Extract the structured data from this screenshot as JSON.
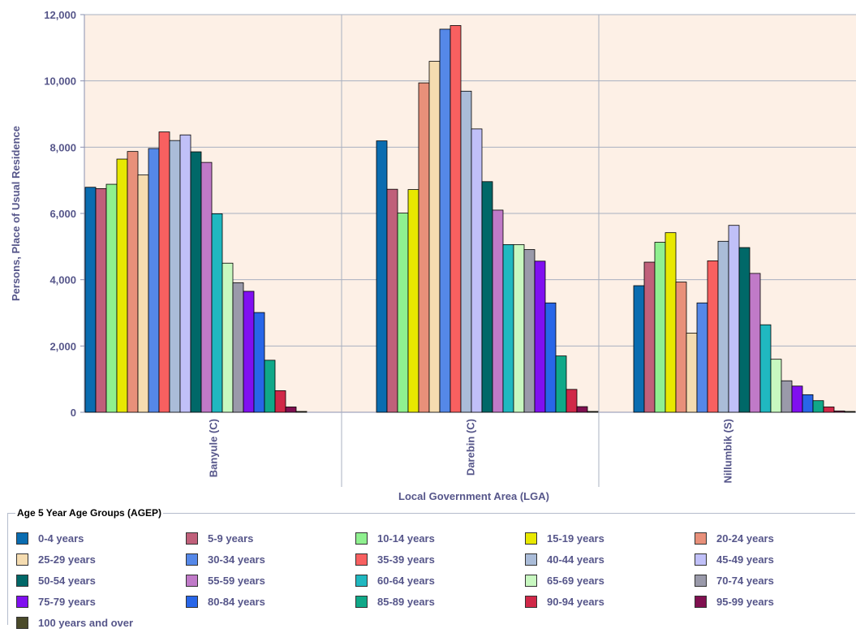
{
  "chart_data": {
    "type": "bar",
    "xlabel": "Local Government Area (LGA)",
    "ylabel": "Persons, Place of Usual Residence",
    "ylim": [
      0,
      12000
    ],
    "yticks": [
      "0",
      "2,000",
      "4,000",
      "6,000",
      "8,000",
      "10,000",
      "12,000"
    ],
    "grid": true,
    "legend_title": "Age 5 Year Age Groups (AGEP)",
    "legend_position": "bottom",
    "categories": [
      "Banyule (C)",
      "Darebin (C)",
      "Nillumbik (S)"
    ],
    "series": [
      {
        "name": "0-4 years",
        "color": "#0a6cb0",
        "values": [
          6790,
          8190,
          3820
        ]
      },
      {
        "name": "5-9 years",
        "color": "#c0607a",
        "values": [
          6750,
          6730,
          4530
        ]
      },
      {
        "name": "10-14 years",
        "color": "#8ff08f",
        "values": [
          6880,
          6010,
          5130
        ]
      },
      {
        "name": "15-19 years",
        "color": "#e8e800",
        "values": [
          7640,
          6720,
          5420
        ]
      },
      {
        "name": "20-24 years",
        "color": "#e8907a",
        "values": [
          7870,
          9940,
          3930
        ]
      },
      {
        "name": "25-29 years",
        "color": "#f5dcb0",
        "values": [
          7160,
          10590,
          2390
        ]
      },
      {
        "name": "30-34 years",
        "color": "#5588e8",
        "values": [
          7960,
          11560,
          3300
        ]
      },
      {
        "name": "35-39 years",
        "color": "#f86060",
        "values": [
          8460,
          11670,
          4570
        ]
      },
      {
        "name": "40-44 years",
        "color": "#aabcd8",
        "values": [
          8200,
          9690,
          5160
        ]
      },
      {
        "name": "45-49 years",
        "color": "#c0c0f8",
        "values": [
          8370,
          8550,
          5640
        ]
      },
      {
        "name": "50-54 years",
        "color": "#006868",
        "values": [
          7860,
          6960,
          4970
        ]
      },
      {
        "name": "55-59 years",
        "color": "#c07ac8",
        "values": [
          7540,
          6100,
          4190
        ]
      },
      {
        "name": "60-64 years",
        "color": "#20b8c0",
        "values": [
          5990,
          5060,
          2640
        ]
      },
      {
        "name": "65-69 years",
        "color": "#c8f8c0",
        "values": [
          4500,
          5060,
          1600
        ]
      },
      {
        "name": "70-74 years",
        "color": "#9a9aaa",
        "values": [
          3910,
          4910,
          950
        ]
      },
      {
        "name": "75-79 years",
        "color": "#8010f0",
        "values": [
          3650,
          4560,
          790
        ]
      },
      {
        "name": "80-84 years",
        "color": "#2866e8",
        "values": [
          3010,
          3300,
          530
        ]
      },
      {
        "name": "85-89 years",
        "color": "#10a888",
        "values": [
          1570,
          1700,
          350
        ]
      },
      {
        "name": "90-94 years",
        "color": "#d02848",
        "values": [
          650,
          690,
          160
        ]
      },
      {
        "name": "95-99 years",
        "color": "#801050",
        "values": [
          160,
          170,
          40
        ]
      },
      {
        "name": "100 years and over",
        "color": "#4a4a2a",
        "values": [
          10,
          20,
          5
        ]
      }
    ]
  }
}
